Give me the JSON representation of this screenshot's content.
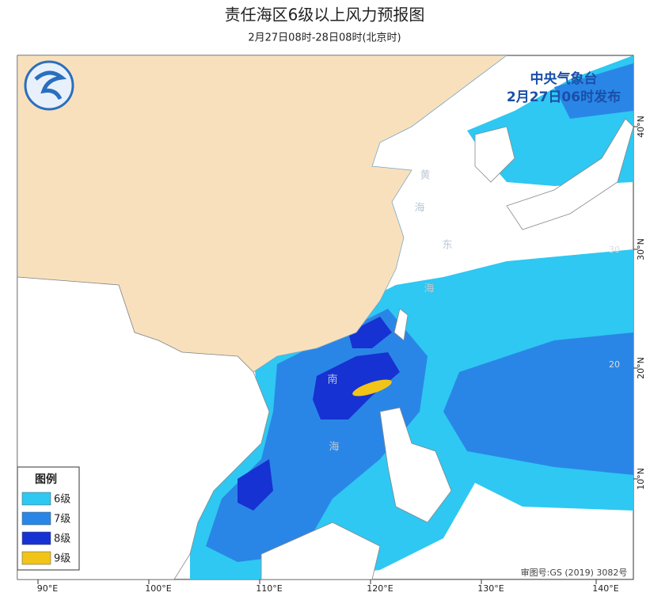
{
  "header": {
    "title": "责任海区6级以上风力预报图",
    "subtitle": "2月27日08时-28日08时(北京时)"
  },
  "agency": {
    "name": "中央气象台",
    "issued": "2月27日06时发布"
  },
  "legend": {
    "title": "图例",
    "items": [
      {
        "label": "6级",
        "color": "#2ec8f2"
      },
      {
        "label": "7级",
        "color": "#2a86e6"
      },
      {
        "label": "8级",
        "color": "#1632d2"
      },
      {
        "label": "9级",
        "color": "#f2c417"
      }
    ]
  },
  "map": {
    "lon_labels": [
      "90°E",
      "100°E",
      "110°E",
      "120°E",
      "130°E",
      "140°E"
    ],
    "lat_labels": [
      "40°N",
      "30°N",
      "20°N",
      "10°N"
    ],
    "inner_lat_labels": [
      "30",
      "20"
    ],
    "sea_labels": [
      "黄",
      "海",
      "东",
      "海",
      "南",
      "海"
    ]
  },
  "footer": {
    "approval": "审图号:GS (2019) 3082号"
  }
}
